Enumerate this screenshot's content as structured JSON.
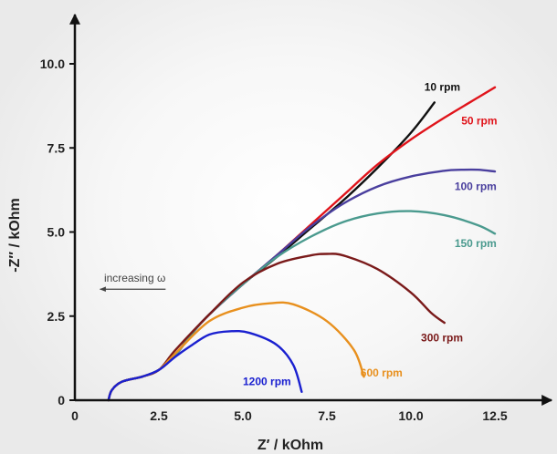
{
  "chart_data": {
    "type": "line",
    "xlabel": "Z′ / kOhm",
    "ylabel": "-Z′′ / kOhm",
    "xlim": [
      0,
      13.8
    ],
    "ylim": [
      0,
      11.1
    ],
    "x_ticks": [
      0,
      2.5,
      5.0,
      7.5,
      10.0,
      12.5
    ],
    "x_tick_labels": [
      "0",
      "2.5",
      "5.0",
      "7.5",
      "10.0",
      "12.5"
    ],
    "y_ticks": [
      0,
      2.5,
      5.0,
      7.5,
      10.0
    ],
    "y_tick_labels": [
      "0",
      "2.5",
      "5.0",
      "7.5",
      "10.0"
    ],
    "grid": false,
    "annotation": {
      "text": "increasing ω",
      "arrow_from": [
        2.7,
        3.3
      ],
      "arrow_to": [
        0.75,
        3.3
      ]
    },
    "series": [
      {
        "name": "10 rpm",
        "color": "#111111",
        "label_at": [
          10.4,
          9.2
        ],
        "points": [
          [
            1,
            0
          ],
          [
            1.1,
            0.3
          ],
          [
            1.4,
            0.55
          ],
          [
            2,
            0.7
          ],
          [
            2.5,
            0.9
          ],
          [
            3,
            1.35
          ],
          [
            3.5,
            2
          ],
          [
            4,
            2.55
          ],
          [
            5,
            3.45
          ],
          [
            6,
            4.25
          ],
          [
            7,
            5.1
          ],
          [
            8,
            5.95
          ],
          [
            9,
            6.9
          ],
          [
            10,
            7.95
          ],
          [
            10.7,
            8.85
          ]
        ]
      },
      {
        "name": "50 rpm",
        "color": "#e0141b",
        "label_at": [
          11.5,
          8.2
        ],
        "points": [
          [
            1,
            0
          ],
          [
            1.1,
            0.3
          ],
          [
            1.4,
            0.55
          ],
          [
            2,
            0.7
          ],
          [
            2.5,
            0.9
          ],
          [
            3,
            1.35
          ],
          [
            3.5,
            2
          ],
          [
            4,
            2.55
          ],
          [
            5,
            3.45
          ],
          [
            6,
            4.3
          ],
          [
            7,
            5.2
          ],
          [
            8,
            6.1
          ],
          [
            9,
            7
          ],
          [
            10,
            7.75
          ],
          [
            11,
            8.4
          ],
          [
            12,
            9
          ],
          [
            12.5,
            9.3
          ]
        ]
      },
      {
        "name": "100 rpm",
        "color": "#4a3f9e",
        "label_at": [
          11.3,
          6.25
        ],
        "points": [
          [
            1,
            0
          ],
          [
            1.1,
            0.3
          ],
          [
            1.4,
            0.55
          ],
          [
            2,
            0.7
          ],
          [
            2.5,
            0.9
          ],
          [
            3,
            1.35
          ],
          [
            3.5,
            2
          ],
          [
            4,
            2.55
          ],
          [
            5,
            3.45
          ],
          [
            6,
            4.3
          ],
          [
            7,
            5.15
          ],
          [
            8,
            5.85
          ],
          [
            9,
            6.35
          ],
          [
            10,
            6.65
          ],
          [
            11,
            6.82
          ],
          [
            11.5,
            6.85
          ],
          [
            12,
            6.85
          ],
          [
            12.5,
            6.8
          ]
        ]
      },
      {
        "name": "150 rpm",
        "color": "#4a9a8e",
        "label_at": [
          11.3,
          4.55
        ],
        "points": [
          [
            1,
            0
          ],
          [
            1.1,
            0.3
          ],
          [
            1.4,
            0.55
          ],
          [
            2,
            0.7
          ],
          [
            2.5,
            0.9
          ],
          [
            3,
            1.35
          ],
          [
            3.5,
            2
          ],
          [
            4,
            2.55
          ],
          [
            5,
            3.45
          ],
          [
            6,
            4.25
          ],
          [
            7,
            4.85
          ],
          [
            8,
            5.3
          ],
          [
            9,
            5.55
          ],
          [
            10,
            5.62
          ],
          [
            11,
            5.5
          ],
          [
            12,
            5.2
          ],
          [
            12.5,
            4.95
          ]
        ]
      },
      {
        "name": "300 rpm",
        "color": "#7a1a1a",
        "label_at": [
          10.3,
          1.75
        ],
        "points": [
          [
            1,
            0
          ],
          [
            1.1,
            0.3
          ],
          [
            1.4,
            0.55
          ],
          [
            2,
            0.7
          ],
          [
            2.5,
            0.9
          ],
          [
            3,
            1.5
          ],
          [
            4,
            2.55
          ],
          [
            5,
            3.5
          ],
          [
            6,
            4.05
          ],
          [
            7,
            4.3
          ],
          [
            7.5,
            4.35
          ],
          [
            8,
            4.3
          ],
          [
            9,
            3.9
          ],
          [
            10,
            3.2
          ],
          [
            10.6,
            2.6
          ],
          [
            11,
            2.3
          ]
        ]
      },
      {
        "name": "600 rpm",
        "color": "#e8901e",
        "label_at": [
          8.5,
          0.7
        ],
        "points": [
          [
            1,
            0
          ],
          [
            1.1,
            0.3
          ],
          [
            1.4,
            0.55
          ],
          [
            2,
            0.7
          ],
          [
            2.5,
            0.9
          ],
          [
            3,
            1.4
          ],
          [
            4,
            2.35
          ],
          [
            5,
            2.75
          ],
          [
            5.8,
            2.88
          ],
          [
            6.5,
            2.85
          ],
          [
            7.5,
            2.35
          ],
          [
            8.3,
            1.5
          ],
          [
            8.6,
            0.7
          ]
        ]
      },
      {
        "name": "1200 rpm",
        "color": "#1a20d0",
        "label_at": [
          5.0,
          0.45
        ],
        "points": [
          [
            1,
            0
          ],
          [
            1.1,
            0.3
          ],
          [
            1.4,
            0.55
          ],
          [
            2,
            0.7
          ],
          [
            2.5,
            0.9
          ],
          [
            3,
            1.3
          ],
          [
            3.5,
            1.65
          ],
          [
            4,
            1.95
          ],
          [
            4.6,
            2.05
          ],
          [
            5.2,
            2
          ],
          [
            6,
            1.65
          ],
          [
            6.5,
            1.05
          ],
          [
            6.75,
            0.25
          ]
        ]
      }
    ]
  }
}
